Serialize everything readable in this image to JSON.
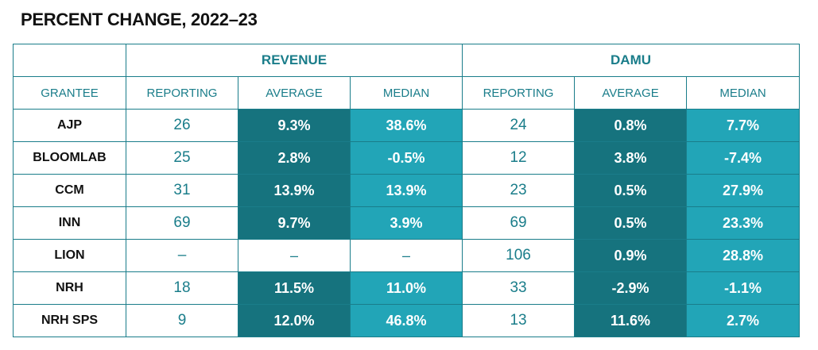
{
  "title": "PERCENT CHANGE, 2022–23",
  "chart_data": {
    "type": "table",
    "title": "PERCENT CHANGE, 2022–23",
    "groups": [
      "REVENUE",
      "DAMU"
    ],
    "columns": [
      "GRANTEE",
      "REPORTING",
      "AVERAGE",
      "MEDIAN",
      "REPORTING",
      "AVERAGE",
      "MEDIAN"
    ],
    "rows": [
      {
        "grantee": "AJP",
        "revenue": {
          "reporting": "26",
          "average": "9.3%",
          "median": "38.6%"
        },
        "damu": {
          "reporting": "24",
          "average": "0.8%",
          "median": "7.7%"
        }
      },
      {
        "grantee": "BLOOMLAB",
        "revenue": {
          "reporting": "25",
          "average": "2.8%",
          "median": "-0.5%"
        },
        "damu": {
          "reporting": "12",
          "average": "3.8%",
          "median": "-7.4%"
        }
      },
      {
        "grantee": "CCM",
        "revenue": {
          "reporting": "31",
          "average": "13.9%",
          "median": "13.9%"
        },
        "damu": {
          "reporting": "23",
          "average": "0.5%",
          "median": "27.9%"
        }
      },
      {
        "grantee": "INN",
        "revenue": {
          "reporting": "69",
          "average": "9.7%",
          "median": "3.9%"
        },
        "damu": {
          "reporting": "69",
          "average": "0.5%",
          "median": "23.3%"
        }
      },
      {
        "grantee": "LION",
        "revenue": {
          "reporting": "–",
          "average": "–",
          "median": "–"
        },
        "damu": {
          "reporting": "106",
          "average": "0.9%",
          "median": "28.8%"
        }
      },
      {
        "grantee": "NRH",
        "revenue": {
          "reporting": "18",
          "average": "11.5%",
          "median": "11.0%"
        },
        "damu": {
          "reporting": "33",
          "average": "-2.9%",
          "median": "-1.1%"
        }
      },
      {
        "grantee": "NRH SPS",
        "revenue": {
          "reporting": "9",
          "average": "12.0%",
          "median": "46.8%"
        },
        "damu": {
          "reporting": "13",
          "average": "11.6%",
          "median": "2.7%"
        }
      }
    ],
    "colors": {
      "header_text": "#1a7d8a",
      "average_fill": "#16737e",
      "median_fill": "#22a5b7",
      "border": "#1a7d8a"
    }
  }
}
